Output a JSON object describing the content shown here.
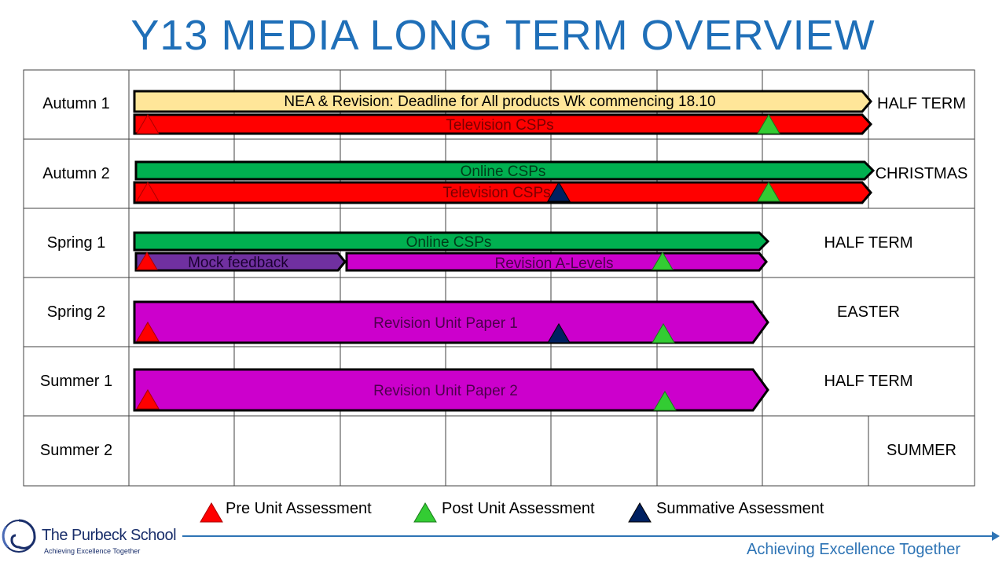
{
  "title": "Y13 MEDIA LONG TERM OVERVIEW",
  "terms": [
    {
      "label": "Autumn 1",
      "holiday": "HALF TERM"
    },
    {
      "label": "Autumn 2",
      "holiday": "CHRISTMAS"
    },
    {
      "label": "Spring 1",
      "holiday": "HALF TERM"
    },
    {
      "label": "Spring 2",
      "holiday": "EASTER"
    },
    {
      "label": "Summer 1",
      "holiday": "HALF TERM"
    },
    {
      "label": "Summer 2",
      "holiday": "SUMMER"
    }
  ],
  "bars": [
    {
      "text": "NEA & Revision: Deadline for All products Wk commencing 18.10",
      "color": "#ffe699"
    },
    {
      "text": "Television CSPs",
      "color": "#ff0000"
    },
    {
      "text": "Online CSPs",
      "color": "#00b050"
    },
    {
      "text": "Television CSPs",
      "color": "#ff0000"
    },
    {
      "text": "Online CSPs",
      "color": "#00b050"
    },
    {
      "text": "Mock feedback",
      "color": "#7030a0"
    },
    {
      "text": "Revision A-Levels",
      "color": "#cc00cc"
    },
    {
      "text": "Revision Unit Paper 1",
      "color": "#cc00cc"
    },
    {
      "text": "Revision Unit Paper 2",
      "color": "#cc00cc"
    }
  ],
  "legend": {
    "pre": "Pre Unit Assessment",
    "post": "Post Unit Assessment",
    "summative": "Summative Assessment",
    "pre_color": "#ff0000",
    "post_color": "#33cc33",
    "summative_color": "#002060"
  },
  "footer": {
    "school": "The Purbeck School",
    "school_tagline": "Achieving Excellence Together",
    "tagline": "Achieving Excellence Together"
  }
}
